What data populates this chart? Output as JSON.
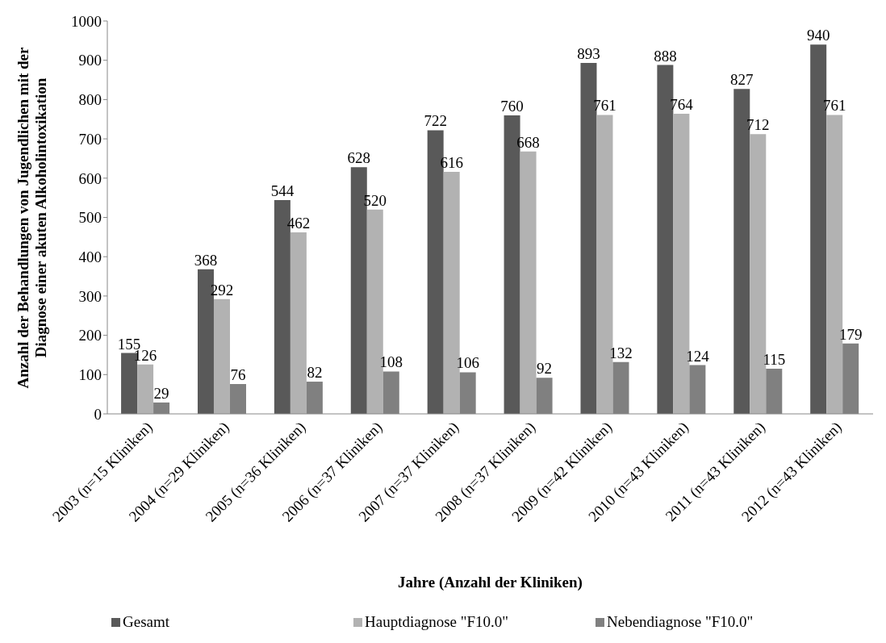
{
  "chart_data": {
    "type": "bar",
    "xlabel": "Jahre (Anzahl der Kliniken)",
    "ylabel": "Anzahl der Behandlungen von Jugendlichen mit der Diagnose einer akuten Alkoholintoxikation",
    "categories": [
      "2003 (n=15 Kliniken)",
      "2004 (n=29 Kliniken)",
      "2005 (n=36 Kliniken)",
      "2006 (n=37 Kliniken)",
      "2007 (n=37 Kliniken)",
      "2008 (n=37 Kliniken)",
      "2009 (n=42 Kliniken)",
      "2010 (n=43 Kliniken)",
      "2011 (n=43 Kliniken)",
      "2012 (n=43 Kliniken)"
    ],
    "series": [
      {
        "name": "Gesamt",
        "color": "#595959",
        "values": [
          155,
          368,
          544,
          628,
          722,
          760,
          893,
          888,
          827,
          940
        ]
      },
      {
        "name": "Hauptdiagnose \"F10.0\"",
        "color": "#b2b2b2",
        "values": [
          126,
          292,
          462,
          520,
          616,
          668,
          761,
          764,
          712,
          761
        ]
      },
      {
        "name": "Nebendiagnose \"F10.0\"",
        "color": "#808080",
        "values": [
          29,
          76,
          82,
          108,
          106,
          92,
          132,
          124,
          115,
          179
        ]
      }
    ],
    "ylim": [
      0,
      1000
    ],
    "yticks": [
      0,
      100,
      200,
      300,
      400,
      500,
      600,
      700,
      800,
      900,
      1000
    ],
    "data_labels": true,
    "legend": "bottom"
  }
}
